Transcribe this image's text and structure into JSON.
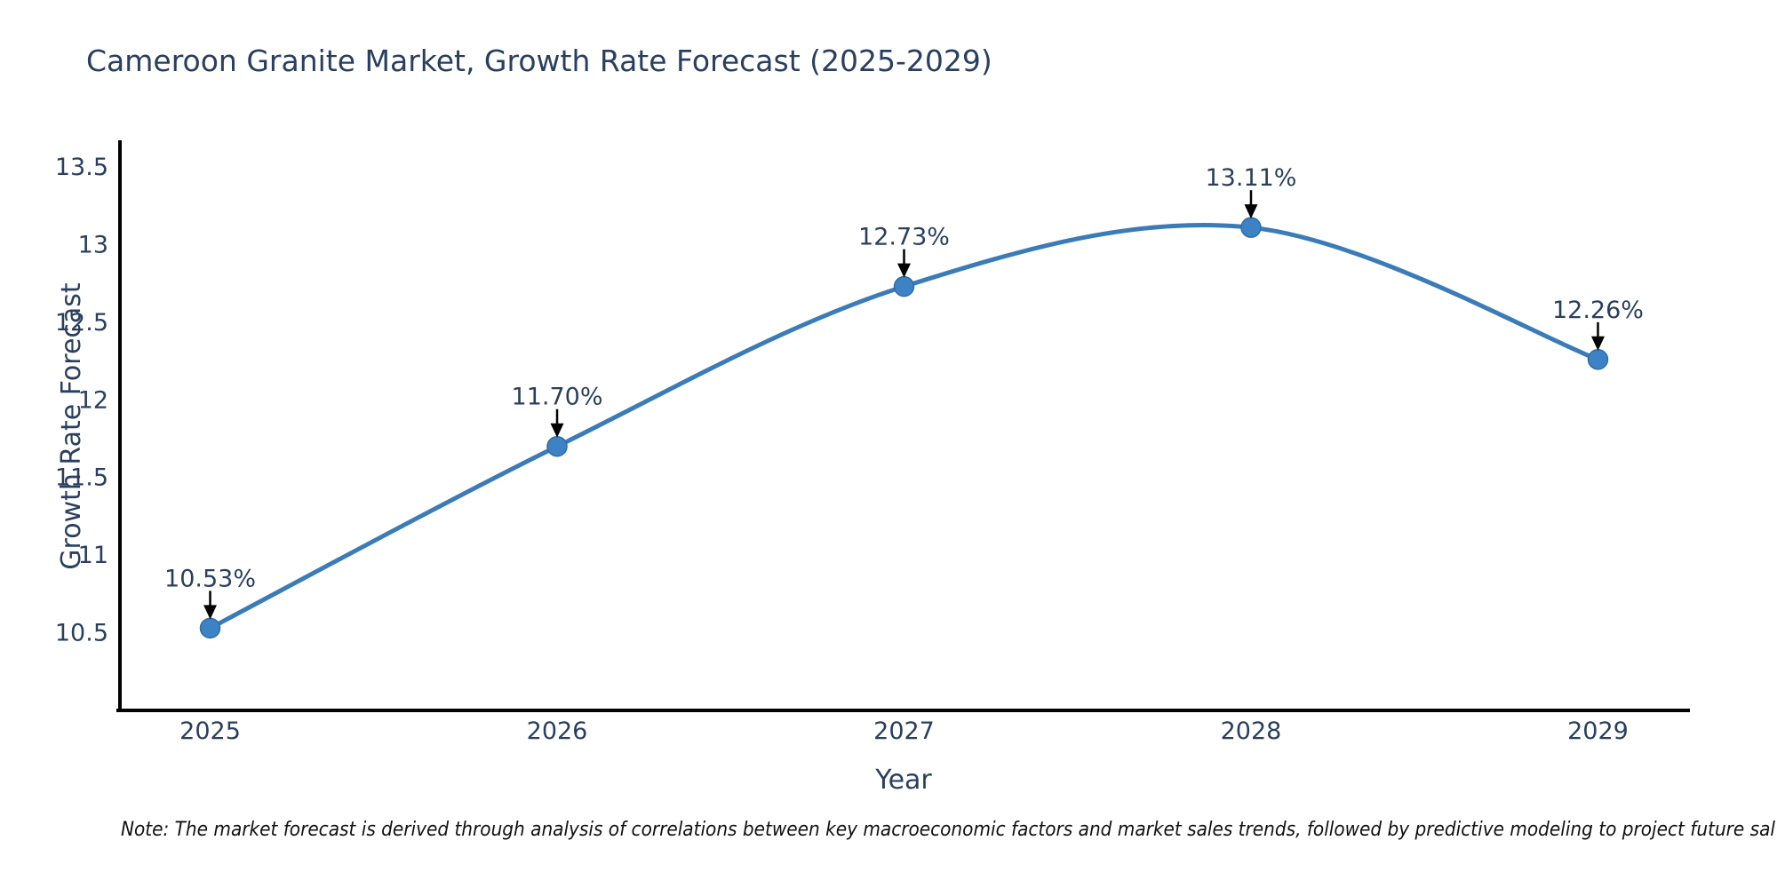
{
  "chart_data": {
    "type": "line",
    "title": "Cameroon Granite Market, Growth Rate Forecast (2025-2029)",
    "xlabel": "Year",
    "ylabel": "Growth Rate Forecast",
    "x": [
      2025,
      2026,
      2027,
      2028,
      2029
    ],
    "series": [
      {
        "name": "Growth Rate Forecast",
        "values": [
          10.53,
          11.7,
          12.73,
          13.11,
          12.26
        ]
      }
    ],
    "point_labels": [
      "10.53%",
      "11.70%",
      "12.73%",
      "13.11%",
      "12.26%"
    ],
    "xtick_labels": [
      "2025",
      "2026",
      "2027",
      "2028",
      "2029"
    ],
    "yticks": [
      10.5,
      11,
      11.5,
      12,
      12.5,
      13,
      13.5
    ],
    "ytick_labels": [
      "10.5",
      "11",
      "11.5",
      "12",
      "12.5",
      "13",
      "13.5"
    ],
    "xlim": [
      2024.74,
      2029.26
    ],
    "ylim": [
      10.0,
      13.66
    ],
    "grid": false,
    "legend_position": "none",
    "line_shape": "spline",
    "colors": {
      "line": "#3b7cb8",
      "marker": "#3d82c4",
      "marker_edge": "#2f6ea6",
      "axis": "#000000",
      "text": "#2a3f5f",
      "arrow": "#000000",
      "note": "#111111",
      "background": "#ffffff"
    },
    "note": "Note: The market forecast is derived through analysis of correlations between key macroeconomic factors and market sales trends, followed by predictive modeling to project future sal"
  }
}
